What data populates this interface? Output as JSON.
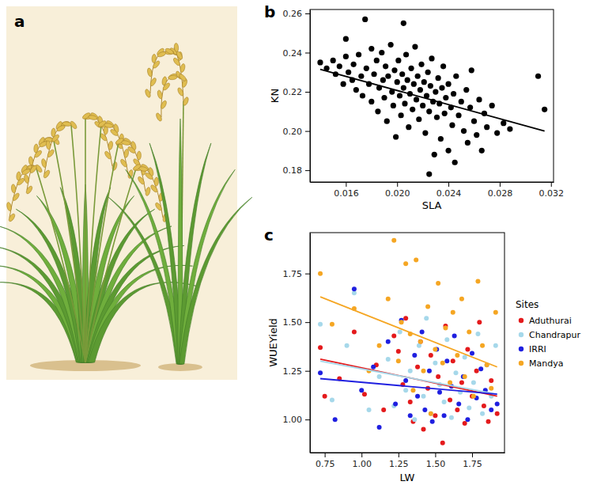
{
  "chart_data": [
    {
      "type": "illustration",
      "panel": "a"
    },
    {
      "type": "scatter",
      "panel": "b",
      "x_label": "SLA",
      "y_label": "KN",
      "color": "#000000",
      "x": [
        0.014,
        0.0145,
        0.015,
        0.0152,
        0.0155,
        0.0158,
        0.016,
        0.016,
        0.0162,
        0.0165,
        0.0166,
        0.0168,
        0.017,
        0.0172,
        0.0173,
        0.0175,
        0.0176,
        0.0178,
        0.018,
        0.018,
        0.0182,
        0.0184,
        0.0185,
        0.0186,
        0.0188,
        0.0189,
        0.019,
        0.0191,
        0.0192,
        0.0193,
        0.0195,
        0.0196,
        0.0197,
        0.0198,
        0.0199,
        0.02,
        0.0201,
        0.0202,
        0.0203,
        0.0204,
        0.0205,
        0.0205,
        0.0206,
        0.0207,
        0.0208,
        0.0209,
        0.021,
        0.0211,
        0.0212,
        0.0213,
        0.0214,
        0.0215,
        0.0216,
        0.0217,
        0.0218,
        0.0219,
        0.022,
        0.0221,
        0.0222,
        0.0223,
        0.0224,
        0.0225,
        0.0225,
        0.0226,
        0.0227,
        0.0228,
        0.0229,
        0.023,
        0.0231,
        0.0232,
        0.0233,
        0.0234,
        0.0235,
        0.0236,
        0.0237,
        0.0238,
        0.024,
        0.024,
        0.0242,
        0.0243,
        0.0244,
        0.0245,
        0.0246,
        0.0248,
        0.025,
        0.0252,
        0.0254,
        0.0255,
        0.0257,
        0.0258,
        0.026,
        0.0262,
        0.0264,
        0.0266,
        0.0268,
        0.027,
        0.0274,
        0.0278,
        0.0283,
        0.0288,
        0.031,
        0.0315
      ],
      "values": [
        0.235,
        0.232,
        0.236,
        0.229,
        0.233,
        0.224,
        0.247,
        0.238,
        0.23,
        0.226,
        0.234,
        0.221,
        0.239,
        0.228,
        0.218,
        0.257,
        0.232,
        0.224,
        0.242,
        0.215,
        0.229,
        0.236,
        0.21,
        0.222,
        0.24,
        0.226,
        0.217,
        0.233,
        0.205,
        0.228,
        0.244,
        0.22,
        0.213,
        0.231,
        0.197,
        0.225,
        0.236,
        0.218,
        0.208,
        0.229,
        0.255,
        0.222,
        0.214,
        0.239,
        0.226,
        0.202,
        0.219,
        0.232,
        0.211,
        0.224,
        0.243,
        0.216,
        0.228,
        0.206,
        0.221,
        0.234,
        0.213,
        0.225,
        0.199,
        0.218,
        0.23,
        0.178,
        0.21,
        0.223,
        0.237,
        0.215,
        0.188,
        0.22,
        0.207,
        0.227,
        0.214,
        0.196,
        0.222,
        0.233,
        0.209,
        0.217,
        0.19,
        0.224,
        0.212,
        0.203,
        0.219,
        0.184,
        0.228,
        0.208,
        0.215,
        0.2,
        0.221,
        0.194,
        0.212,
        0.231,
        0.205,
        0.198,
        0.216,
        0.19,
        0.209,
        0.202,
        0.213,
        0.199,
        0.204,
        0.201,
        0.228,
        0.211
      ],
      "fit": {
        "x": [
          0.014,
          0.0315
        ],
        "values": [
          0.2315,
          0.2
        ]
      },
      "xlim": [
        0.0132,
        0.0322
      ],
      "xticks": [
        0.016,
        {
          "value": 0.02,
          "label": "0.020"
        },
        0.024,
        0.028,
        0.032
      ],
      "ylim": [
        0.174,
        0.262
      ],
      "yticks": [
        0.18,
        {
          "value": 0.2,
          "label": "0.20"
        },
        0.22,
        0.24,
        0.26
      ]
    },
    {
      "type": "scatter",
      "panel": "c",
      "x_label": "LW",
      "y_label": "WUEYield",
      "legend": "right",
      "legend_title": "Sites",
      "series": [
        {
          "name": "Aduthurai",
          "color": "#e41a1c",
          "x": [
            0.72,
            0.75,
            0.85,
            0.95,
            1.02,
            1.1,
            1.15,
            1.22,
            1.25,
            1.28,
            1.3,
            1.33,
            1.35,
            1.38,
            1.4,
            1.42,
            1.45,
            1.47,
            1.5,
            1.52,
            1.55,
            1.57,
            1.6,
            1.62,
            1.65,
            1.68,
            1.7,
            1.72,
            1.75,
            1.78,
            1.8,
            1.83,
            1.86,
            1.88,
            1.92
          ],
          "values": [
            1.37,
            1.12,
            1.21,
            1.45,
            1.13,
            1.28,
            1.05,
            1.43,
            1.35,
            1.18,
            1.52,
            1.09,
            0.99,
            1.27,
            1.4,
            0.95,
            1.16,
            1.33,
            1.02,
            1.22,
            0.88,
            1.48,
            1.1,
            1.3,
            1.05,
            1.19,
            0.98,
            1.36,
            1.12,
            1.25,
            1.5,
            1.07,
            0.99,
            1.2,
            1.03
          ],
          "fit": {
            "x": [
              0.72,
              1.92
            ],
            "values": [
              1.31,
              1.12
            ]
          }
        },
        {
          "name": "Chandrapur",
          "color": "#a6d8ea",
          "x": [
            0.72,
            0.8,
            0.9,
            0.95,
            1.05,
            1.12,
            1.18,
            1.22,
            1.26,
            1.3,
            1.33,
            1.36,
            1.39,
            1.42,
            1.44,
            1.47,
            1.5,
            1.53,
            1.56,
            1.58,
            1.61,
            1.64,
            1.67,
            1.7,
            1.73,
            1.76,
            1.79,
            1.82,
            1.85,
            1.88,
            1.91
          ],
          "values": [
            1.49,
            1.1,
            1.38,
            1.65,
            1.05,
            1.22,
            1.31,
            1.07,
            1.45,
            1.15,
            1.25,
            1.0,
            1.38,
            1.12,
            1.52,
            1.03,
            1.29,
            1.18,
            1.09,
            1.41,
            1.01,
            1.24,
            1.14,
            1.32,
            1.06,
            1.19,
            1.44,
            1.03,
            1.28,
            1.12,
            1.38
          ],
          "fit": {
            "x": [
              0.72,
              1.92
            ],
            "values": [
              1.3,
              1.13
            ]
          }
        },
        {
          "name": "IRRI",
          "color": "#1f1fe0",
          "x": [
            0.72,
            0.82,
            0.95,
            1.0,
            1.08,
            1.12,
            1.18,
            1.23,
            1.27,
            1.3,
            1.33,
            1.36,
            1.38,
            1.41,
            1.43,
            1.46,
            1.48,
            1.51,
            1.53,
            1.56,
            1.58,
            1.61,
            1.63,
            1.66,
            1.69,
            1.72,
            1.75,
            1.78,
            1.81,
            1.84,
            1.88,
            1.92
          ],
          "values": [
            1.24,
            1.0,
            1.67,
            1.15,
            1.27,
            0.96,
            1.4,
            1.08,
            1.51,
            1.2,
            1.02,
            1.33,
            1.12,
            1.45,
            1.05,
            1.25,
            0.99,
            1.36,
            1.14,
            1.02,
            1.3,
            1.17,
            1.43,
            1.08,
            1.22,
            1.0,
            1.34,
            1.11,
            1.26,
            1.15,
            1.05,
            1.08
          ],
          "fit": {
            "x": [
              0.72,
              1.92
            ],
            "values": [
              1.21,
              1.13
            ]
          }
        },
        {
          "name": "Mandya",
          "color": "#f5a623",
          "x": [
            0.72,
            0.8,
            0.95,
            1.05,
            1.12,
            1.18,
            1.22,
            1.25,
            1.27,
            1.3,
            1.33,
            1.35,
            1.37,
            1.4,
            1.42,
            1.45,
            1.47,
            1.5,
            1.52,
            1.55,
            1.57,
            1.6,
            1.62,
            1.65,
            1.68,
            1.7,
            1.73,
            1.76,
            1.79,
            1.82,
            1.85,
            1.88,
            1.91
          ],
          "values": [
            1.75,
            1.49,
            1.57,
            1.25,
            1.38,
            1.62,
            1.92,
            1.3,
            1.5,
            1.8,
            1.44,
            1.15,
            1.82,
            1.4,
            1.25,
            1.58,
            1.03,
            1.36,
            1.7,
            1.29,
            1.47,
            1.19,
            1.55,
            1.33,
            1.62,
            1.22,
            1.45,
            1.12,
            1.71,
            1.38,
            1.28,
            1.16,
            1.55
          ],
          "fit": {
            "x": [
              0.72,
              1.92
            ],
            "values": [
              1.63,
              1.27
            ]
          }
        }
      ],
      "xlim": [
        0.65,
        1.97
      ],
      "xticks": [
        0.75,
        {
          "value": 1,
          "label": "1.00"
        },
        1.25,
        {
          "value": 1.5,
          "label": "1.50"
        },
        1.75
      ],
      "ylim": [
        0.83,
        1.96
      ],
      "yticks": [
        {
          "value": 1,
          "label": "1.00"
        },
        1.25,
        {
          "value": 1.5,
          "label": "1.50"
        },
        1.75
      ]
    }
  ]
}
